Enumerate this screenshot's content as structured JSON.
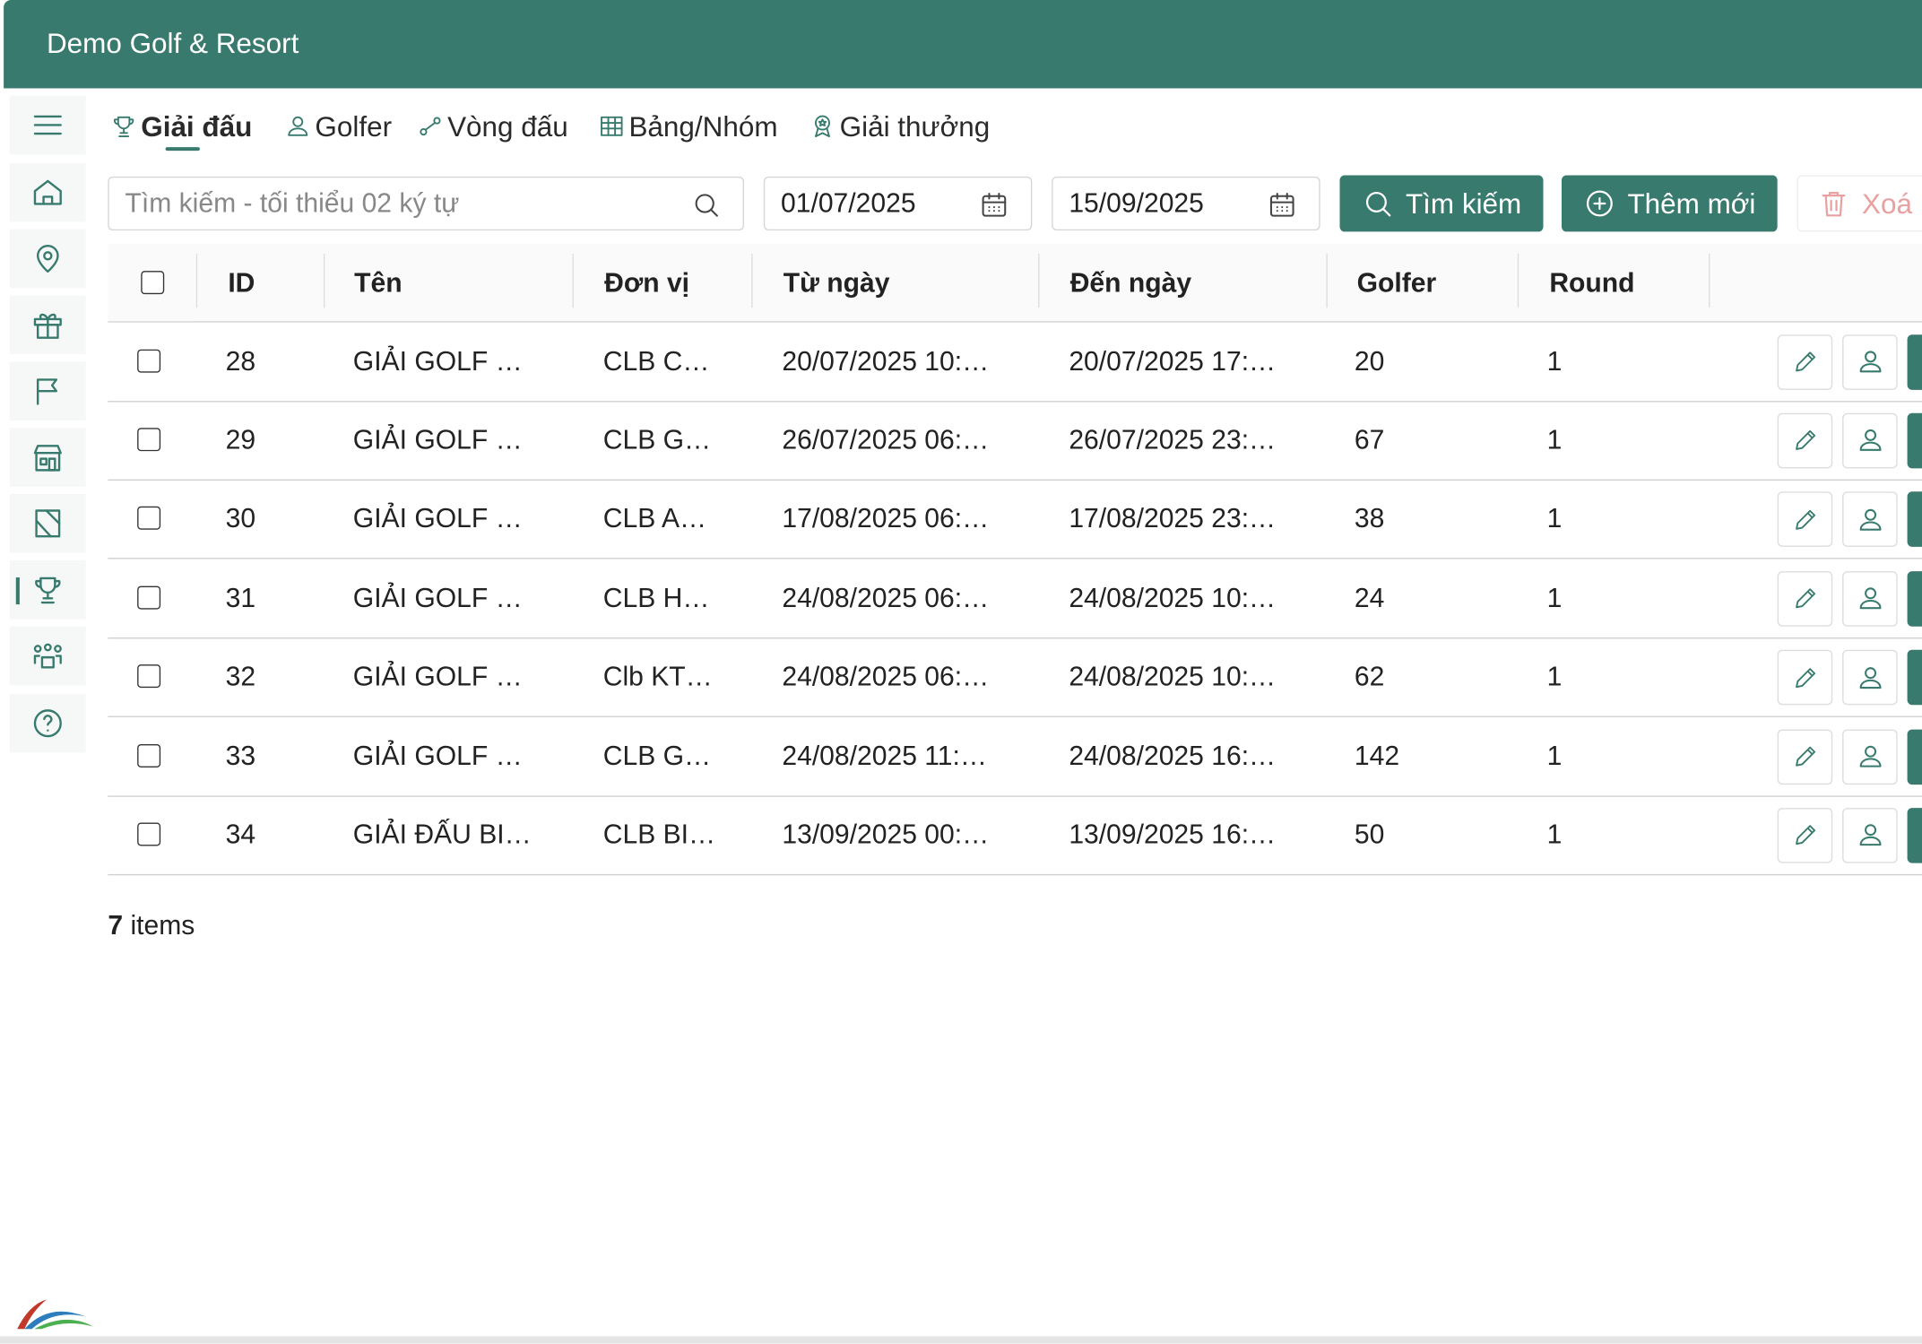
{
  "header": {
    "title": "Demo Golf & Resort"
  },
  "tabs": [
    "Giải đấu",
    "Golfer",
    "Vòng đấu",
    "Bảng/Nhóm",
    "Giải thưởng"
  ],
  "filters": {
    "search_placeholder": "Tìm kiếm - tối thiểu 02 ký tự",
    "from_date": "01/07/2025",
    "to_date": "15/09/2025",
    "buttons": [
      "Tìm kiếm",
      "Thêm mới",
      "Xoá"
    ]
  },
  "table": {
    "columns": [
      "ID",
      "Tên",
      "Đơn vị",
      "Từ ngày",
      "Đến ngày",
      "Golfer",
      "Round"
    ],
    "rows": [
      [
        28,
        "GIẢI GOLF …",
        "CLB C…",
        "20/07/2025 10:…",
        "20/07/2025 17:…",
        20,
        1
      ],
      [
        29,
        "GIẢI GOLF …",
        "CLB G…",
        "26/07/2025 06:…",
        "26/07/2025 23:…",
        67,
        1
      ],
      [
        30,
        "GIẢI GOLF …",
        "CLB A…",
        "17/08/2025 06:…",
        "17/08/2025 23:…",
        38,
        1
      ],
      [
        31,
        "GIẢI GOLF …",
        "CLB H…",
        "24/08/2025 06:…",
        "24/08/2025 10:…",
        24,
        1
      ],
      [
        32,
        "GIẢI GOLF …",
        "Clb KT…",
        "24/08/2025 06:…",
        "24/08/2025 10:…",
        62,
        1
      ],
      [
        33,
        "GIẢI GOLF …",
        "CLB G…",
        "24/08/2025 11:…",
        "24/08/2025 16:…",
        142,
        1
      ],
      [
        34,
        "GIẢI ĐẤU BI…",
        "CLB BI…",
        "13/09/2025 00:…",
        "13/09/2025 16:…",
        50,
        1
      ]
    ]
  },
  "footer": {
    "count": 7,
    "label": "items"
  }
}
